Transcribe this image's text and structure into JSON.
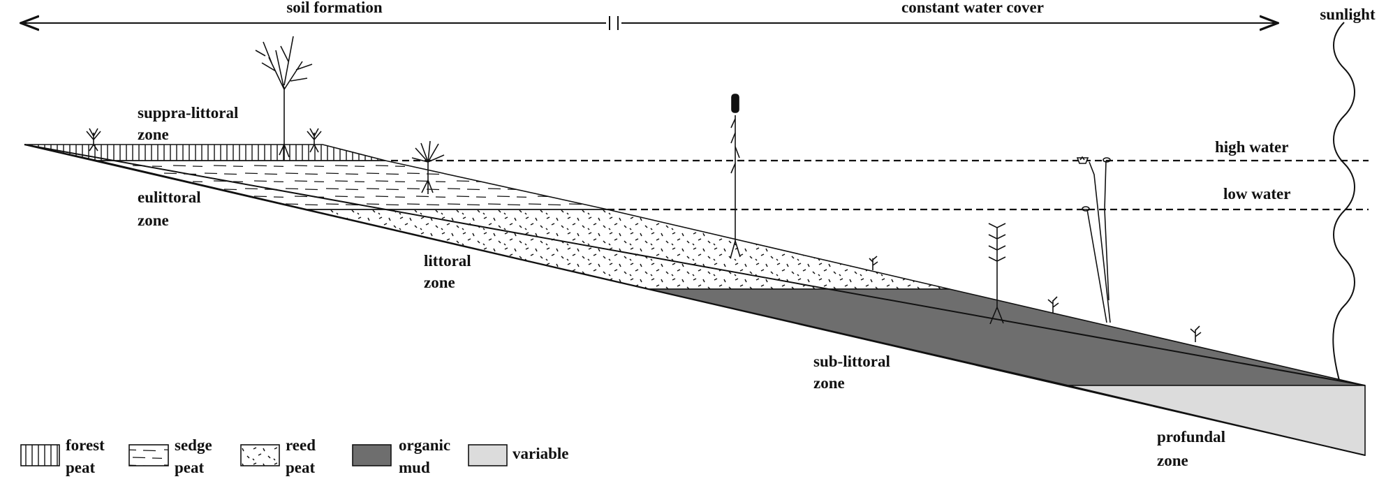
{
  "header": {
    "left_label": "soil formation",
    "right_label": "constant water cover",
    "sunlight_label": "sunlight"
  },
  "water_levels": {
    "high": "high water",
    "low": "low water"
  },
  "zones": {
    "suppra_littoral": [
      "suppra-littoral",
      "zone"
    ],
    "eulittoral": [
      "eulittoral",
      "zone"
    ],
    "littoral": [
      "littoral",
      "zone"
    ],
    "sub_littoral": [
      "sub-littoral",
      "zone"
    ],
    "profundal": [
      "profundal",
      "zone"
    ]
  },
  "legend": [
    {
      "key": "forest-peat",
      "pattern": "vertical-hatch",
      "lines": [
        "forest",
        "peat"
      ]
    },
    {
      "key": "sedge-peat",
      "pattern": "dashes",
      "lines": [
        "sedge",
        "peat"
      ]
    },
    {
      "key": "reed-peat",
      "pattern": "dots",
      "lines": [
        "reed",
        "peat"
      ]
    },
    {
      "key": "organic-mud",
      "pattern": "dark-fill",
      "color": "#6e6e6e",
      "lines": [
        "organic",
        "mud"
      ]
    },
    {
      "key": "variable",
      "pattern": "light-fill",
      "color": "#dcdcdc",
      "lines": [
        "variable"
      ]
    }
  ],
  "colors": {
    "ink": "#111111",
    "organic_mud": "#6e6e6e",
    "variable": "#dcdcdc"
  }
}
